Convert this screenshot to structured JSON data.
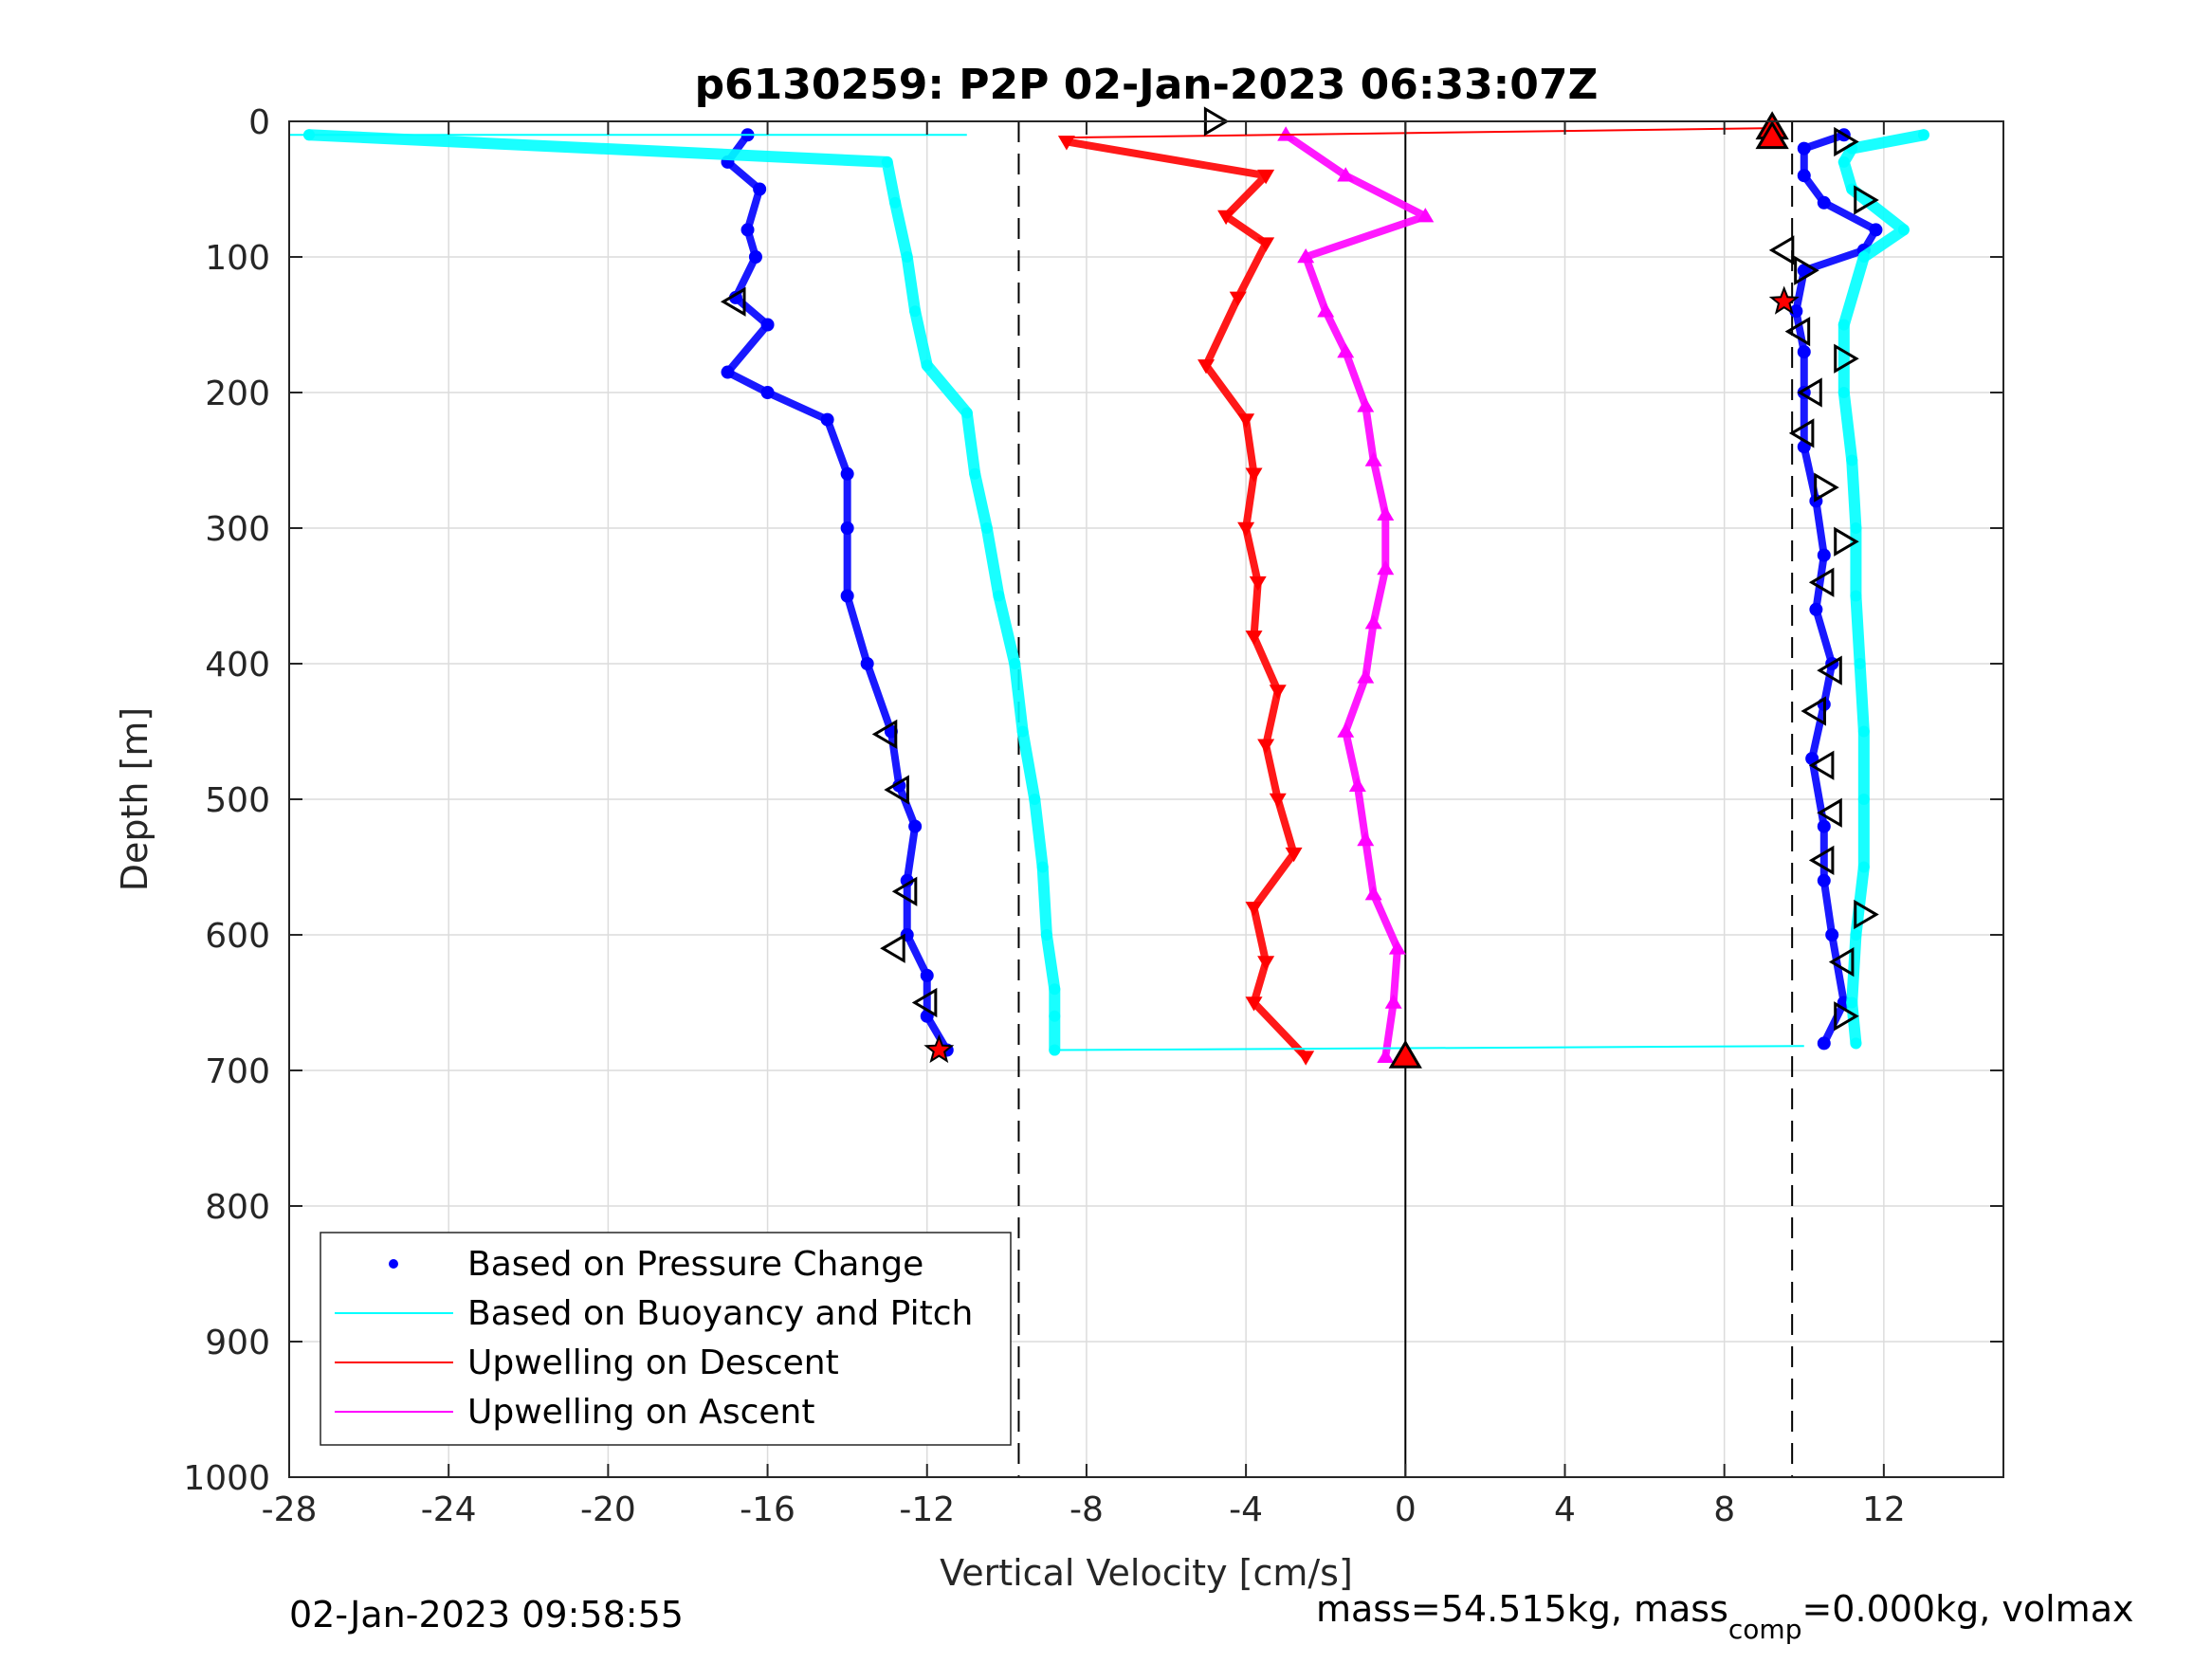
{
  "title": "p6130259: P2P 02-Jan-2023 06:33:07Z",
  "footer": {
    "timestamp": "02-Jan-2023 09:58:55",
    "mass_text_a": "mass=54.515kg, mass",
    "mass_text_sub": "comp",
    "mass_text_b": "=0.000kg, volmax"
  },
  "legend": [
    {
      "label": "Based on Pressure Change",
      "color": "#0000ff",
      "kind": "dot"
    },
    {
      "label": "Based on Buoyancy and Pitch",
      "color": "#00ffff",
      "kind": "line"
    },
    {
      "label": "Upwelling on Descent",
      "color": "#ff0000",
      "kind": "line"
    },
    {
      "label": "Upwelling on Ascent",
      "color": "#ff00ff",
      "kind": "line"
    }
  ],
  "chart_data": {
    "type": "scatter",
    "title": "p6130259: P2P 02-Jan-2023 06:33:07Z",
    "xlabel": "Vertical Velocity [cm/s]",
    "ylabel": "Depth [m]",
    "xlim": [
      -28,
      15
    ],
    "ylim": [
      0,
      1000
    ],
    "y_reversed": true,
    "grid": true,
    "legend_position": "bottom-left",
    "x_ticks": [
      "-28",
      "-24",
      "-20",
      "-16",
      "-12",
      "-8",
      "-4",
      "0",
      "4",
      "8",
      "12"
    ],
    "y_ticks": [
      "0",
      "100",
      "200",
      "300",
      "400",
      "500",
      "600",
      "700",
      "800",
      "900",
      "1000"
    ],
    "reference_lines": {
      "dashed_x": [
        -9.7,
        9.7
      ],
      "solid_x": [
        0
      ]
    },
    "series": [
      {
        "name": "Based on Pressure Change",
        "color": "#0000ff",
        "role": "descent",
        "depth": [
          10,
          30,
          50,
          80,
          100,
          130,
          150,
          185,
          200,
          220,
          260,
          300,
          350,
          400,
          450,
          490,
          520,
          560,
          600,
          630,
          660,
          685
        ],
        "velocity": [
          -16.5,
          -17.0,
          -16.2,
          -16.5,
          -16.3,
          -16.8,
          -16.0,
          -17.0,
          -16.0,
          -14.5,
          -14.0,
          -14.0,
          -14.0,
          -13.5,
          -12.9,
          -12.7,
          -12.3,
          -12.5,
          -12.5,
          -12.0,
          -12.0,
          -11.5
        ]
      },
      {
        "name": "Based on Pressure Change",
        "color": "#0000ff",
        "role": "ascent",
        "depth": [
          680,
          650,
          600,
          560,
          520,
          470,
          430,
          400,
          360,
          320,
          280,
          240,
          200,
          170,
          140,
          110,
          95,
          80,
          60,
          40,
          20,
          10
        ],
        "velocity": [
          10.5,
          11.0,
          10.7,
          10.5,
          10.5,
          10.2,
          10.5,
          10.7,
          10.3,
          10.5,
          10.3,
          10.0,
          10.0,
          10.0,
          9.8,
          10.0,
          11.5,
          11.8,
          10.5,
          10.0,
          10.0,
          11.0
        ]
      },
      {
        "name": "Based on Buoyancy and Pitch",
        "color": "#00ffff",
        "role": "descent",
        "depth": [
          10,
          30,
          60,
          100,
          140,
          180,
          215,
          260,
          300,
          350,
          400,
          450,
          500,
          550,
          600,
          640,
          660,
          685
        ],
        "velocity": [
          -27.5,
          -13.0,
          -12.8,
          -12.5,
          -12.3,
          -12.0,
          -11.0,
          -10.8,
          -10.5,
          -10.2,
          -9.8,
          -9.6,
          -9.3,
          -9.1,
          -9.0,
          -8.8,
          -8.8,
          -8.8
        ]
      },
      {
        "name": "Based on Buoyancy and Pitch",
        "color": "#00ffff",
        "role": "ascent",
        "depth": [
          680,
          650,
          600,
          550,
          500,
          450,
          400,
          350,
          300,
          250,
          200,
          150,
          100,
          80,
          50,
          30,
          20,
          10
        ],
        "velocity": [
          11.3,
          11.2,
          11.3,
          11.5,
          11.5,
          11.5,
          11.4,
          11.3,
          11.3,
          11.2,
          11.0,
          11.0,
          11.5,
          12.5,
          11.2,
          11.0,
          11.2,
          13.0
        ]
      },
      {
        "name": "Upwelling on Descent",
        "color": "#ff0000",
        "depth": [
          15,
          40,
          70,
          90,
          130,
          180,
          220,
          260,
          300,
          340,
          380,
          420,
          460,
          500,
          540,
          580,
          620,
          650,
          690
        ],
        "velocity": [
          -8.5,
          -3.5,
          -4.5,
          -3.5,
          -4.2,
          -5.0,
          -4.0,
          -3.8,
          -4.0,
          -3.7,
          -3.8,
          -3.2,
          -3.5,
          -3.2,
          -2.8,
          -3.8,
          -3.5,
          -3.8,
          -2.5
        ]
      },
      {
        "name": "Upwelling on Ascent",
        "color": "#ff00ff",
        "depth": [
          690,
          650,
          610,
          570,
          530,
          490,
          450,
          410,
          370,
          330,
          290,
          250,
          210,
          170,
          140,
          100,
          70,
          40,
          10
        ],
        "velocity": [
          -0.5,
          -0.3,
          -0.2,
          -0.8,
          -1.0,
          -1.2,
          -1.5,
          -1.0,
          -0.8,
          -0.5,
          -0.5,
          -0.8,
          -1.0,
          -1.5,
          -2.0,
          -2.5,
          0.5,
          -1.5,
          -3.0
        ]
      }
    ],
    "markers": {
      "triangle_right_open": [
        [
          -4.8,
          0
        ],
        [
          11.0,
          15
        ],
        [
          11.5,
          58
        ],
        [
          10.0,
          110
        ],
        [
          11.0,
          175
        ],
        [
          10.5,
          270
        ],
        [
          11.0,
          310
        ],
        [
          11.5,
          585
        ],
        [
          11.0,
          660
        ]
      ],
      "triangle_left_open": [
        [
          -16.8,
          133
        ],
        [
          -13.0,
          452
        ],
        [
          -12.7,
          493
        ],
        [
          -12.5,
          568
        ],
        [
          -12.8,
          610
        ],
        [
          -12.0,
          650
        ],
        [
          9.5,
          95
        ],
        [
          9.9,
          155
        ],
        [
          10.2,
          200
        ],
        [
          10.0,
          230
        ],
        [
          10.5,
          340
        ],
        [
          10.7,
          405
        ],
        [
          10.3,
          435
        ],
        [
          10.5,
          475
        ],
        [
          10.7,
          510
        ],
        [
          10.5,
          545
        ],
        [
          11.0,
          620
        ]
      ],
      "triangle_up_filled": [
        [
          9.2,
          5
        ],
        [
          9.2,
          12
        ],
        [
          0.0,
          690
        ]
      ],
      "star_filled": [
        [
          9.5,
          133
        ],
        [
          -11.7,
          685
        ]
      ]
    }
  }
}
